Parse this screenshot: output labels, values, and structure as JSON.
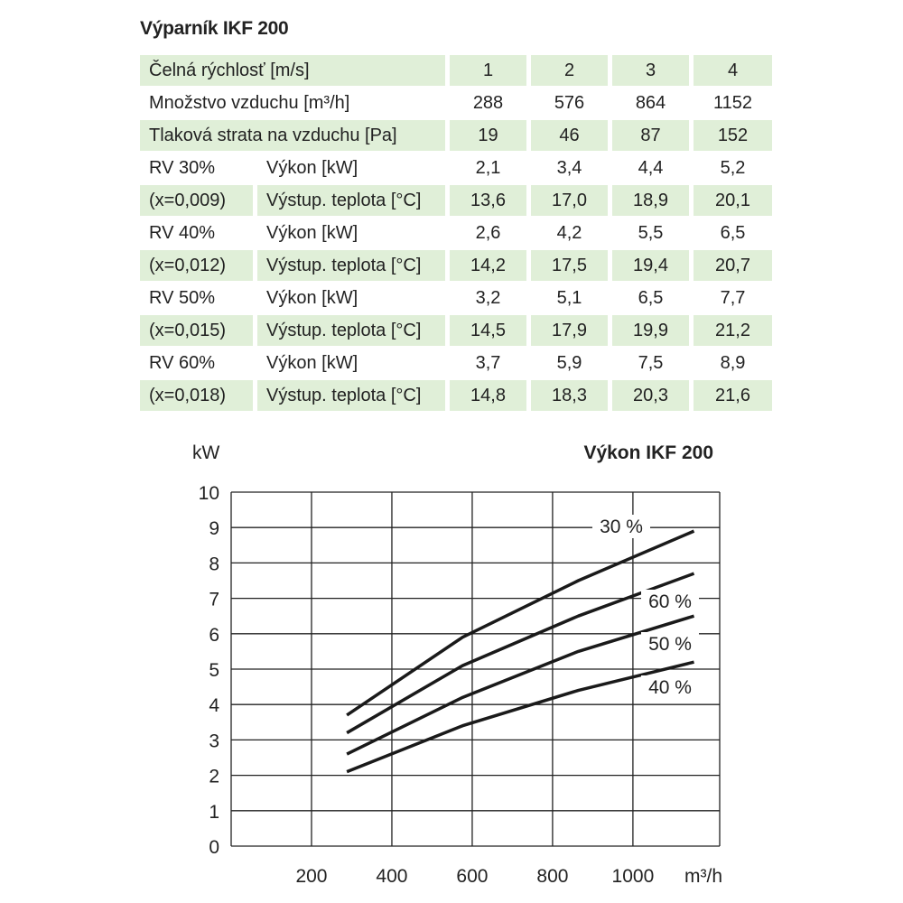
{
  "table": {
    "title": "Výparník IKF 200",
    "header": {
      "label": "Čelná rýchlosť [m/s]",
      "values": [
        "1",
        "2",
        "3",
        "4"
      ]
    },
    "airflow": {
      "label": "Množstvo vzduchu [m³/h]",
      "values": [
        "288",
        "576",
        "864",
        "1152"
      ]
    },
    "pressure": {
      "label": "Tlaková strata na vzduchu [Pa]",
      "values": [
        "19",
        "46",
        "87",
        "152"
      ]
    },
    "rows": [
      {
        "a": "RV 30%",
        "b": "Výkon [kW]",
        "values": [
          "2,1",
          "3,4",
          "4,4",
          "5,2"
        ]
      },
      {
        "a": "(x=0,009)",
        "b": "Výstup. teplota [°C]",
        "values": [
          "13,6",
          "17,0",
          "18,9",
          "20,1"
        ]
      },
      {
        "a": "RV 40%",
        "b": "Výkon [kW]",
        "values": [
          "2,6",
          "4,2",
          "5,5",
          "6,5"
        ]
      },
      {
        "a": "(x=0,012)",
        "b": "Výstup. teplota [°C]",
        "values": [
          "14,2",
          "17,5",
          "19,4",
          "20,7"
        ]
      },
      {
        "a": "RV 50%",
        "b": "Výkon [kW]",
        "values": [
          "3,2",
          "5,1",
          "6,5",
          "7,7"
        ]
      },
      {
        "a": "(x=0,015)",
        "b": "Výstup. teplota [°C]",
        "values": [
          "14,5",
          "17,9",
          "19,9",
          "21,2"
        ]
      },
      {
        "a": "RV 60%",
        "b": "Výkon [kW]",
        "values": [
          "3,7",
          "5,9",
          "7,5",
          "8,9"
        ]
      },
      {
        "a": "(x=0,018)",
        "b": "Výstup. teplota [°C]",
        "values": [
          "14,8",
          "18,3",
          "20,3",
          "21,6"
        ]
      }
    ],
    "green": "#e0efd8"
  },
  "chart_data": {
    "type": "line",
    "title": "Výkon IKF 200",
    "ylabel": "kW",
    "xlabel": "m³/h",
    "xlim": [
      0,
      1216
    ],
    "ylim": [
      0,
      10
    ],
    "xticks": [
      200,
      400,
      600,
      800,
      1000
    ],
    "yticks": [
      0,
      1,
      2,
      3,
      4,
      5,
      6,
      7,
      8,
      9,
      10
    ],
    "grid": true,
    "x": [
      288,
      576,
      864,
      1152
    ],
    "series": [
      {
        "name": "30 %",
        "values": [
          2.1,
          3.4,
          4.4,
          5.2
        ]
      },
      {
        "name": "40 %",
        "values": [
          2.6,
          4.2,
          5.5,
          6.5
        ]
      },
      {
        "name": "50 %",
        "values": [
          3.2,
          5.1,
          6.5,
          7.7
        ]
      },
      {
        "name": "60 %",
        "values": [
          3.7,
          5.9,
          7.5,
          8.9
        ]
      }
    ]
  }
}
